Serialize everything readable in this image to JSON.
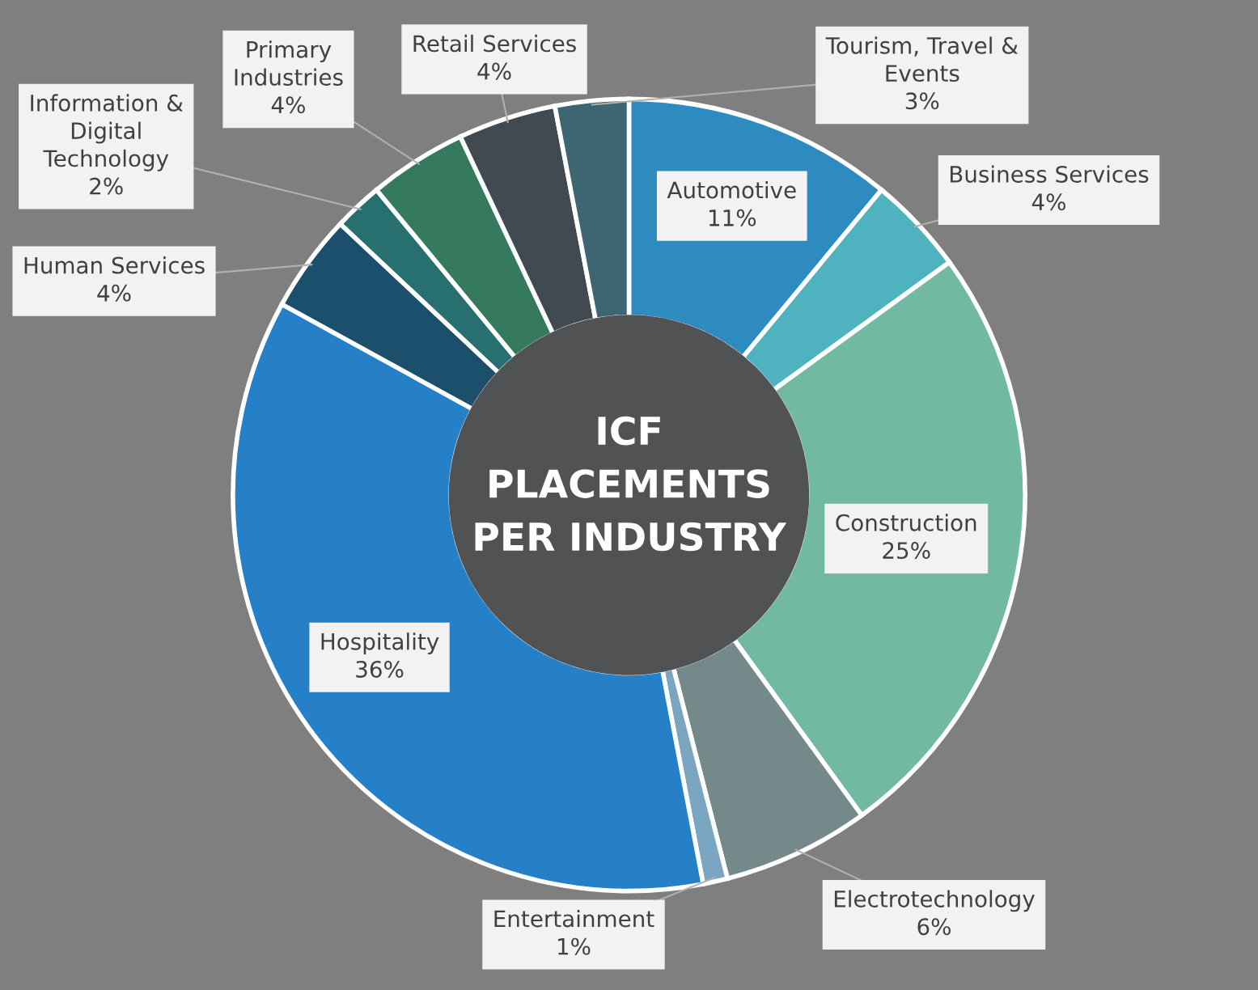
{
  "chart_data": {
    "type": "donut",
    "title": "ICF\nPLACEMENTS\nPER INDUSTRY",
    "categories": [
      "Automotive",
      "Business Services",
      "Construction",
      "Electrotechnology",
      "Entertainment",
      "Hospitality",
      "Human Services",
      "Information & Digital Technology",
      "Primary Industries",
      "Retail Services",
      "Tourism, Travel & Events"
    ],
    "values": [
      11,
      4,
      25,
      6,
      1,
      36,
      4,
      2,
      4,
      4,
      3
    ],
    "value_labels": [
      "11%",
      "4%",
      "25%",
      "6%",
      "1%",
      "36%",
      "4%",
      "2%",
      "4%",
      "4%",
      "3%"
    ],
    "colors": [
      "#2e8bc0",
      "#4fb3bf",
      "#72b9a4",
      "#748a8a",
      "#7aa6c2",
      "#2580c8",
      "#1b4f6b",
      "#28706f",
      "#357a5f",
      "#414a50",
      "#3d6572"
    ],
    "legend": false
  }
}
